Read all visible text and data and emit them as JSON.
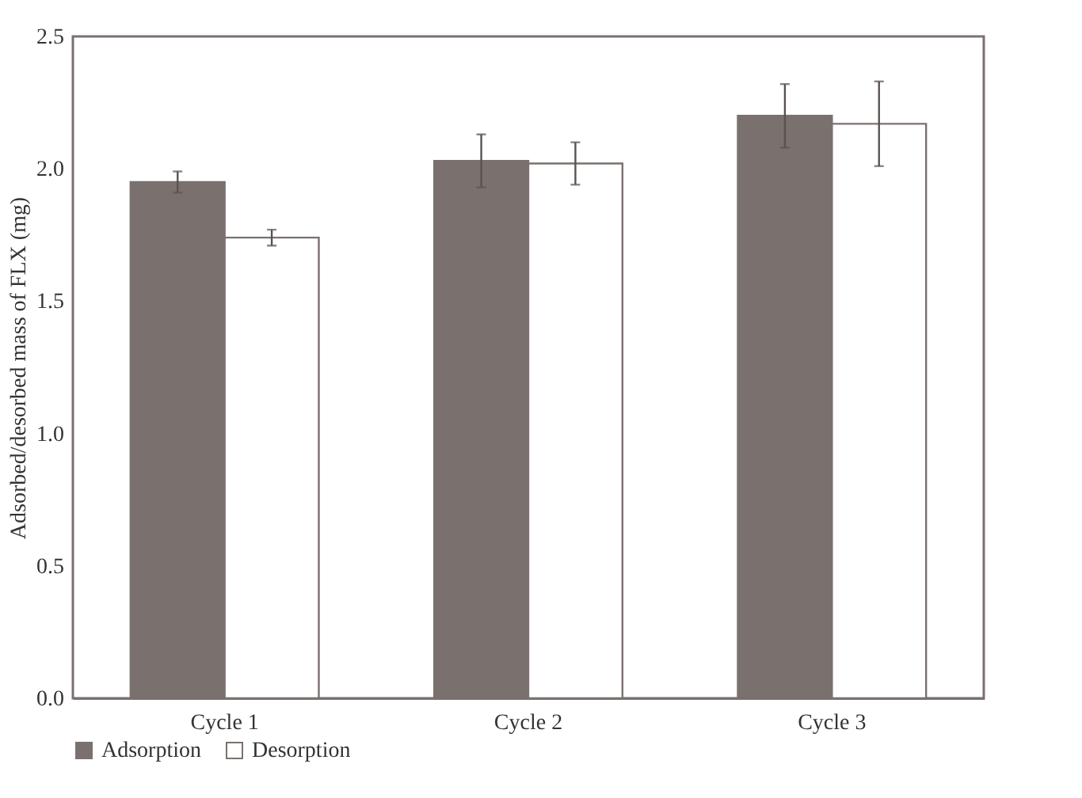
{
  "chart_data": {
    "type": "bar",
    "ylabel": "Adsorbed/desorbed mass of FLX (mg)",
    "categories": [
      "Cycle 1",
      "Cycle 2",
      "Cycle 3"
    ],
    "series": [
      {
        "name": "Adsorption",
        "color": "#7a716e",
        "values": [
          1.95,
          2.03,
          2.2
        ],
        "errors": [
          0.04,
          0.1,
          0.12
        ]
      },
      {
        "name": "Desorption",
        "color": "#ffffff",
        "values": [
          1.74,
          2.02,
          2.17
        ],
        "errors": [
          0.03,
          0.08,
          0.16
        ]
      }
    ],
    "ylim": [
      0,
      2.5
    ],
    "yticks": [
      {
        "value": 0,
        "label": "0.0"
      },
      {
        "value": 0.5,
        "label": "0.5"
      },
      {
        "value": 1,
        "label": "1.0"
      },
      {
        "value": 1.5,
        "label": "1.5"
      },
      {
        "value": 2,
        "label": "2.0"
      },
      {
        "value": 2.5,
        "label": "2.5"
      }
    ],
    "grid": false,
    "legend": "bottom"
  }
}
